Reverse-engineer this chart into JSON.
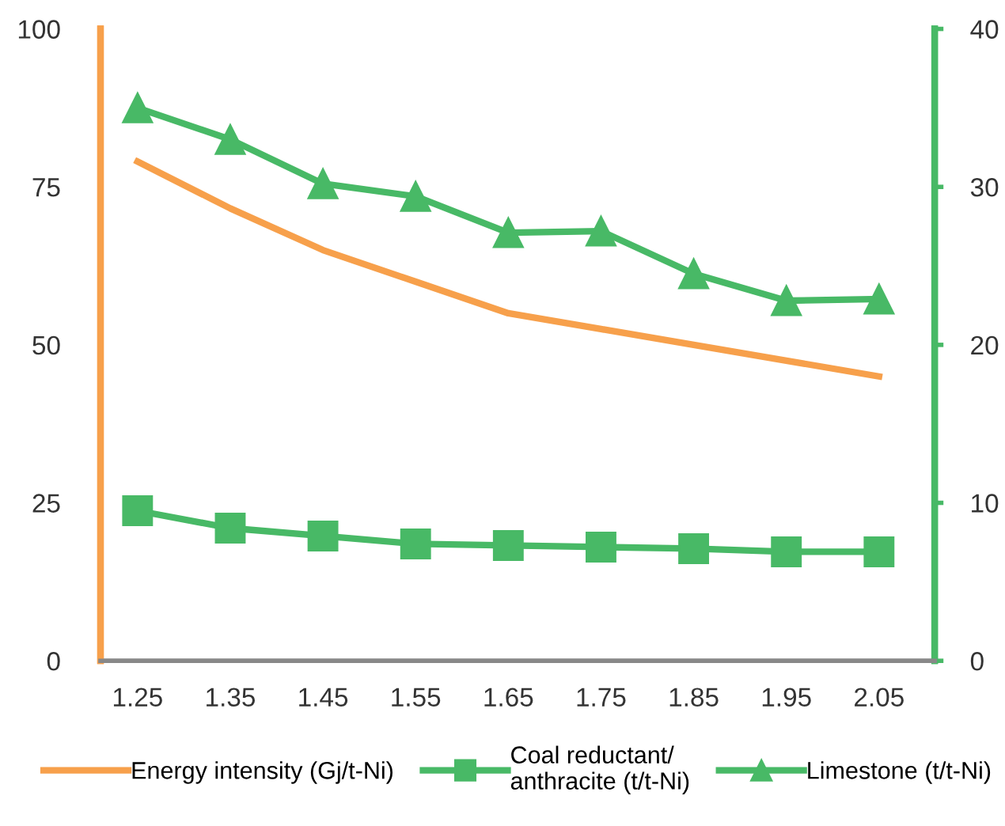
{
  "chart_data": {
    "type": "line",
    "categories": [
      "1.25",
      "1.35",
      "1.45",
      "1.55",
      "1.65",
      "1.75",
      "1.85",
      "1.95",
      "2.05"
    ],
    "series": [
      {
        "name": "Energy intensity (Gj/t-Ni)",
        "color": "#f7a04b",
        "marker": "none",
        "values": [
          79,
          71.6,
          65,
          60,
          55,
          52.5,
          50,
          47.5,
          45
        ]
      },
      {
        "name": "Coal reductant/\nanthracite (t/t-Ni)",
        "color": "#48b966",
        "marker": "square",
        "axis": "y2",
        "values": [
          9.5,
          8.4,
          7.9,
          7.4,
          7.3,
          7.2,
          7.1,
          6.9,
          6.9
        ]
      },
      {
        "name": "Limestone (t/t-Ni)",
        "color": "#48b966",
        "marker": "triangle",
        "axis": "y2",
        "values": [
          35,
          33,
          30.2,
          29.4,
          27.1,
          27.2,
          24.5,
          22.8,
          22.9
        ]
      }
    ],
    "ylim": [
      0,
      100
    ],
    "yticks": [
      0,
      25,
      50,
      75,
      100
    ],
    "y2lim": [
      0,
      40
    ],
    "y2ticks": [
      0,
      10,
      20,
      30,
      40
    ],
    "grid": false,
    "legend": "bottom",
    "line_style": "solid"
  }
}
